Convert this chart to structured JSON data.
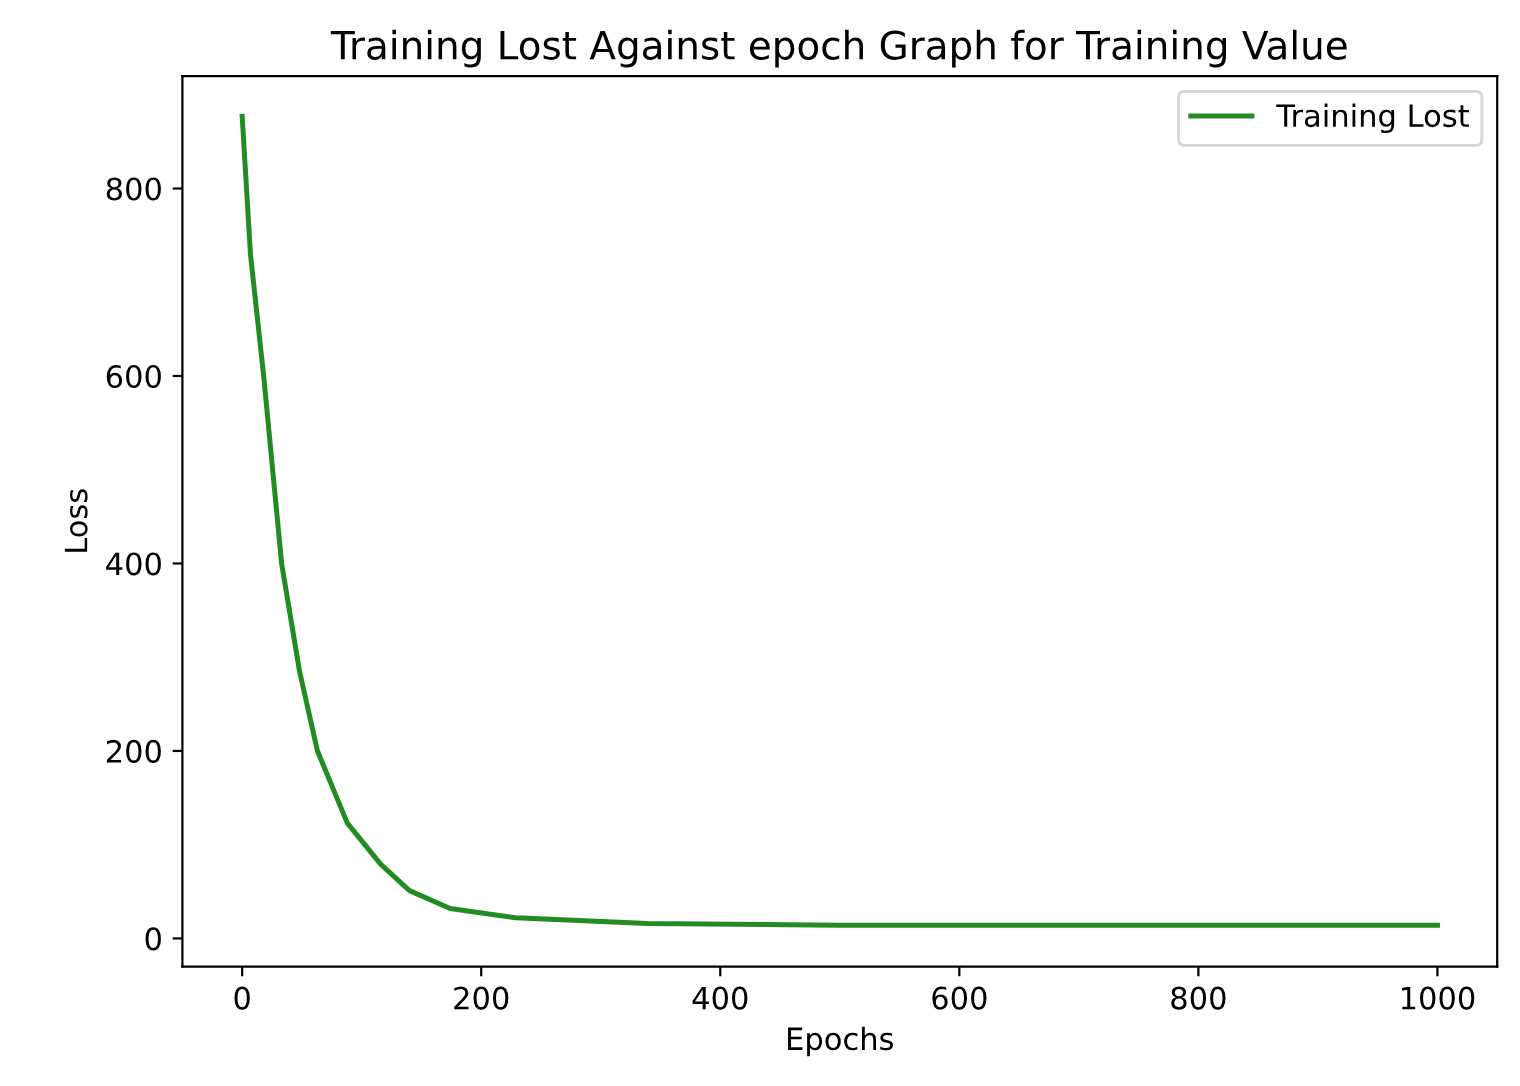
{
  "chart_data": {
    "type": "line",
    "title": "Training Lost Against epoch Graph for Training Value",
    "xlabel": "Epochs",
    "ylabel": "Loss",
    "series": [
      {
        "name": "Training Lost",
        "color": "#228b22",
        "x": [
          0,
          7,
          18,
          33,
          48,
          63,
          88,
          116,
          140,
          174,
          229,
          339,
          500,
          700,
          1000
        ],
        "values": [
          877,
          729,
          600,
          400,
          285,
          200,
          123,
          79,
          51,
          32,
          22,
          16,
          14,
          14,
          14
        ]
      }
    ],
    "xlim": [
      -50,
      1050
    ],
    "ylim": [
      -30,
      920
    ],
    "xticks": [
      0,
      200,
      400,
      600,
      800,
      1000
    ],
    "yticks": [
      0,
      200,
      400,
      600,
      800
    ],
    "legend": "top right",
    "grid": false
  }
}
